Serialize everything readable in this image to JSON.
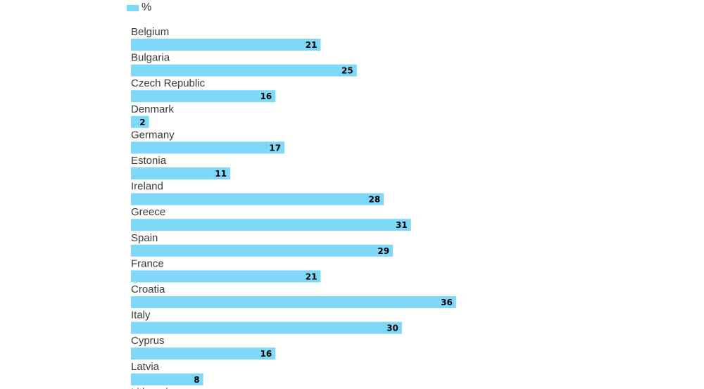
{
  "colors": {
    "bar": "#7fd8f7",
    "label": "#3a3a3a",
    "value": "#000000"
  },
  "legend": {
    "label": "%",
    "placement": "top-left"
  },
  "chart_data": {
    "type": "bar",
    "orientation": "horizontal",
    "categories": [
      "Belgium",
      "Bulgaria",
      "Czech Republic",
      "Denmark",
      "Germany",
      "Estonia",
      "Ireland",
      "Greece",
      "Spain",
      "France",
      "Croatia",
      "Italy",
      "Cyprus",
      "Latvia",
      "Lithuania"
    ],
    "series": [
      {
        "name": "%",
        "values": [
          21,
          25,
          16,
          2,
          17,
          11,
          28,
          31,
          29,
          21,
          36,
          30,
          16,
          8,
          null
        ]
      }
    ],
    "data_labels": true,
    "grid": false,
    "xlim": [
      0,
      36
    ]
  }
}
